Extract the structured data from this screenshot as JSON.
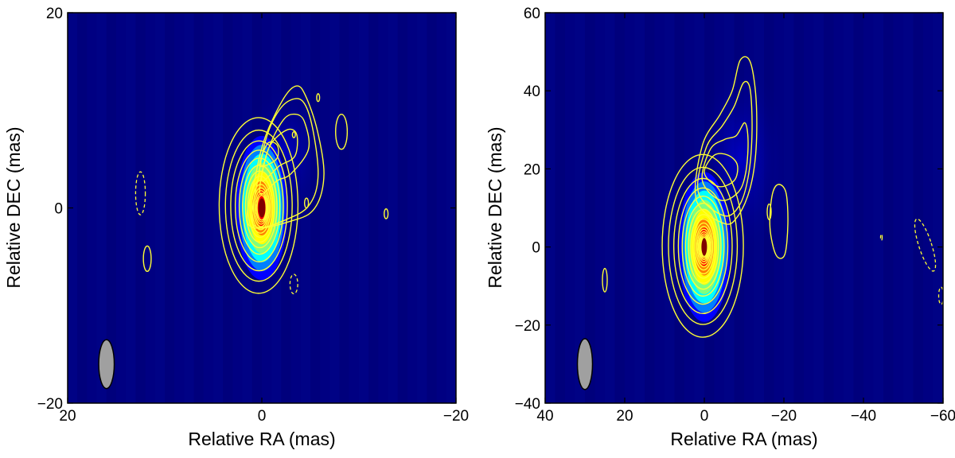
{
  "chart_data": [
    {
      "type": "heatmap",
      "xlabel": "Relative RA (mas)",
      "ylabel": "Relative DEC (mas)",
      "xlim": [
        20,
        -20
      ],
      "ylim": [
        -20,
        20
      ],
      "x_ticks": [
        20,
        0,
        -20
      ],
      "y_ticks": [
        -20,
        0,
        20
      ],
      "x_tick_labels": [
        "20",
        "0",
        "−20"
      ],
      "y_tick_labels": [
        "−20",
        "0",
        "20"
      ],
      "grid": false,
      "colormap": "jet",
      "background_color": "#00007f",
      "contour_color": "#ffff33",
      "beam_color": "#a0a0a0",
      "peak": [
        0,
        0
      ],
      "core_sigma": [
        0.9,
        2.5
      ],
      "contours_positive": 14,
      "beam": {
        "x": 16,
        "y": -16,
        "major": 5.0,
        "minor": 1.6,
        "pa": 0
      },
      "negative_contours": [
        {
          "x": 12.5,
          "y": 1.5,
          "rx": 0.5,
          "ry": 2.2
        },
        {
          "x": -3.3,
          "y": -7.8,
          "rx": 0.4,
          "ry": 1.0
        }
      ],
      "isolated_contours": [
        {
          "x": 11.8,
          "y": -5.2,
          "rx": 0.4,
          "ry": 1.3
        },
        {
          "x": -8.2,
          "y": 7.8,
          "rx": 0.6,
          "ry": 1.8
        },
        {
          "x": -5.8,
          "y": 11.3,
          "rx": 0.15,
          "ry": 0.4
        },
        {
          "x": -12.8,
          "y": -0.6,
          "rx": 0.2,
          "ry": 0.5
        },
        {
          "x": -3.3,
          "y": 7.5,
          "rx": 0.15,
          "ry": 0.3
        },
        {
          "x": -4.6,
          "y": 0.5,
          "rx": 0.2,
          "ry": 0.5
        }
      ],
      "jet_contours": [
        [
          [
            1.3,
            -1.8
          ],
          [
            0.6,
            3.5
          ],
          [
            -0.4,
            7.4
          ],
          [
            -2.3,
            11.3
          ],
          [
            -3.6,
            12.5
          ],
          [
            -4.5,
            11.5
          ],
          [
            -5.7,
            8.0
          ],
          [
            -6.4,
            3.5
          ],
          [
            -5.6,
            0.2
          ],
          [
            -3.5,
            -1.2
          ]
        ],
        [
          [
            0.8,
            -1.8
          ],
          [
            0.3,
            3.5
          ],
          [
            -0.6,
            7.6
          ],
          [
            -2.0,
            10.3
          ],
          [
            -3.5,
            11.2
          ],
          [
            -4.5,
            10.5
          ],
          [
            -5.3,
            7.8
          ],
          [
            -5.8,
            3.5
          ],
          [
            -5.2,
            0.8
          ],
          [
            -3.4,
            -0.8
          ]
        ],
        [
          [
            0.2,
            1.5
          ],
          [
            -0.6,
            5.8
          ],
          [
            -2.2,
            9.0
          ],
          [
            -3.5,
            9.6
          ],
          [
            -4.4,
            8.8
          ],
          [
            -4.8,
            6.0
          ],
          [
            -3.0,
            3.5
          ],
          [
            -1.6,
            2.8
          ]
        ],
        [
          [
            0.0,
            2.8
          ],
          [
            -0.8,
            6.3
          ],
          [
            -2.6,
            8.0
          ],
          [
            -3.6,
            7.5
          ],
          [
            -3.4,
            5.3
          ],
          [
            -1.8,
            4.3
          ]
        ],
        [
          [
            0.2,
            4.3
          ],
          [
            -0.6,
            6.6
          ],
          [
            -1.6,
            6.4
          ],
          [
            -1.5,
            5.0
          ]
        ]
      ],
      "jet_extent": [
        1.8,
        -6.5,
        -1.5,
        12.6
      ],
      "core_min_half_width": 0.9
    },
    {
      "type": "heatmap",
      "xlabel": "Relative RA (mas)",
      "ylabel": "Relative DEC (mas)",
      "xlim": [
        40,
        -60
      ],
      "ylim": [
        -40,
        60
      ],
      "x_ticks": [
        40,
        20,
        0,
        -20,
        -40,
        -60
      ],
      "y_ticks": [
        -40,
        -20,
        0,
        20,
        40,
        60
      ],
      "x_tick_labels": [
        "40",
        "20",
        "0",
        "−20",
        "−40",
        "−60"
      ],
      "y_tick_labels": [
        "−40",
        "−20",
        "0",
        "20",
        "40",
        "60"
      ],
      "grid": false,
      "colormap": "jet",
      "background_color": "#00007f",
      "contour_color": "#ffff33",
      "beam_color": "#a0a0a0",
      "peak": [
        0,
        0
      ],
      "core_sigma": [
        2.2,
        6.5
      ],
      "contours_positive": 16,
      "beam": {
        "x": 30,
        "y": -30,
        "major": 13.0,
        "minor": 3.8,
        "pa": 0
      },
      "negative_contours": [
        {
          "x": -55.5,
          "y": 0.5,
          "rx": 1.6,
          "ry": 7.0,
          "rotate": -18
        },
        {
          "x": -59.5,
          "y": -12.5,
          "rx": 0.6,
          "ry": 2.2
        },
        {
          "x": -44.5,
          "y": 2.5,
          "rx": 0.2,
          "ry": 0.8
        }
      ],
      "isolated_contours": [
        {
          "x": 25.0,
          "y": -8.5,
          "rx": 0.6,
          "ry": 3.0
        },
        {
          "x": -16.3,
          "y": 9.0,
          "rx": 0.5,
          "ry": 2.0
        }
      ],
      "jet_contours": [
        [
          [
            2.0,
            12.0
          ],
          [
            0.5,
            26.0
          ],
          [
            -4.0,
            34.0
          ],
          [
            -7.0,
            40.0
          ],
          [
            -9.0,
            47.8
          ],
          [
            -11.5,
            47.5
          ],
          [
            -13.0,
            38.0
          ],
          [
            -13.0,
            25.0
          ],
          [
            -11.5,
            15.0
          ],
          [
            -8.5,
            8.0
          ],
          [
            -5.0,
            6.0
          ]
        ],
        [
          [
            1.5,
            14.0
          ],
          [
            -0.5,
            25.5
          ],
          [
            -4.5,
            31.0
          ],
          [
            -7.5,
            36.0
          ],
          [
            -9.8,
            42.0
          ],
          [
            -11.5,
            40.5
          ],
          [
            -12.0,
            30.0
          ],
          [
            -11.2,
            19.0
          ],
          [
            -9.0,
            11.0
          ],
          [
            -5.0,
            8.0
          ]
        ],
        [
          [
            0.5,
            17.0
          ],
          [
            -1.5,
            25.0
          ],
          [
            -5.0,
            27.5
          ],
          [
            -8.0,
            28.5
          ],
          [
            -10.2,
            31.8
          ],
          [
            -11.0,
            27.0
          ],
          [
            -10.4,
            19.0
          ],
          [
            -8.5,
            14.0
          ],
          [
            -4.0,
            12.0
          ]
        ],
        [
          [
            0.0,
            19.0
          ],
          [
            -2.5,
            23.5
          ],
          [
            -6.0,
            23.5
          ],
          [
            -8.3,
            21.0
          ],
          [
            -7.5,
            17.0
          ],
          [
            -3.5,
            15.5
          ]
        ],
        [
          [
            -17.0,
            13.0
          ],
          [
            -16.5,
            5.0
          ],
          [
            -18.0,
            -2.0
          ],
          [
            -20.2,
            -2.0
          ],
          [
            -21.0,
            6.0
          ],
          [
            -20.5,
            14.0
          ],
          [
            -18.5,
            16.0
          ]
        ]
      ],
      "jet_extent": [
        3.0,
        -21.5,
        -3.5,
        48.5
      ],
      "core_min_half_width": 1.6
    }
  ]
}
